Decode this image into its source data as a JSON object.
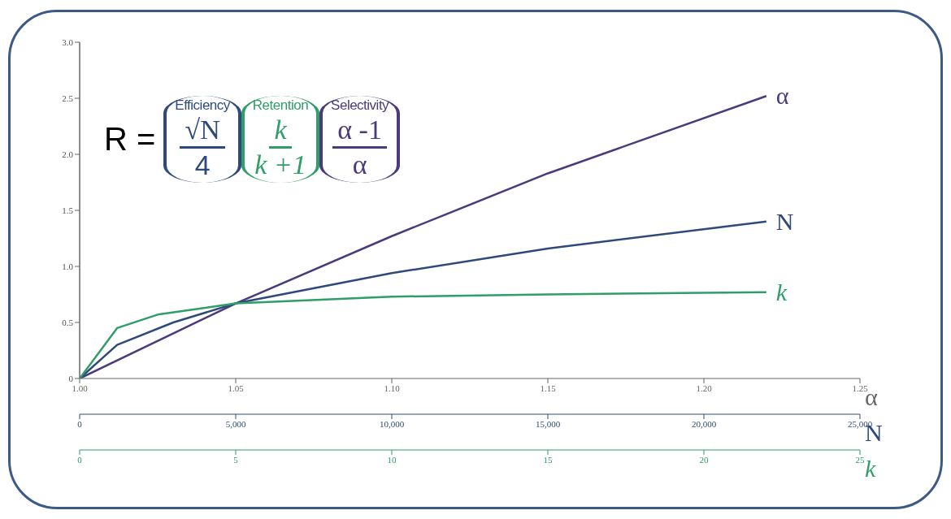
{
  "chart_data": [
    {
      "type": "line",
      "annotations": [
        "R =",
        "Efficiency",
        "√N",
        "4",
        "Retention",
        "k",
        "k +1",
        "Selectivity",
        "α -1",
        "α"
      ],
      "xlabel": "α",
      "x2label": "N",
      "xlim": [
        1.0,
        1.25
      ],
      "xticks": [
        {
          "value": 1.0,
          "label": "1.00"
        },
        1.05,
        {
          "value": 1.1,
          "label": "1.10"
        },
        1.15,
        {
          "value": 1.2,
          "label": "1.20"
        },
        1.25
      ],
      "x2lim": [
        0,
        25000
      ],
      "x2ticks": [
        0,
        {
          "value": 5000,
          "label": "5,000"
        },
        {
          "value": 10000,
          "label": "10,000"
        },
        {
          "value": 15000,
          "label": "15,000"
        },
        {
          "value": 20000,
          "label": "20,000"
        },
        {
          "value": 25000,
          "label": "25,000"
        }
      ],
      "ylim": [
        0,
        3
      ],
      "yticks": [
        0,
        0.5,
        {
          "value": 1,
          "label": "1.0"
        },
        1.5,
        {
          "value": 2,
          "label": "2.0"
        },
        2.5,
        {
          "value": 3,
          "label": "3.0"
        }
      ],
      "marker": "none",
      "line_style": "solid",
      "series": [
        {
          "name": "α",
          "color": "#4b3a7c",
          "x": [
            1.0,
            1.05,
            1.1,
            1.15,
            1.22
          ],
          "values": [
            0,
            0.67,
            1.27,
            1.83,
            2.52
          ]
        },
        {
          "name": "N",
          "color": "#2e4a7d",
          "axis": "x2",
          "x": [
            0,
            1200,
            3000,
            5000,
            10000,
            15000,
            22000
          ],
          "values": [
            0,
            0.3,
            0.5,
            0.67,
            0.94,
            1.16,
            1.4
          ]
        }
      ]
    },
    {
      "type": "line",
      "xlabel": "k",
      "xlim": [
        0,
        25
      ],
      "xticks": [
        0,
        5,
        10,
        15,
        20,
        25
      ],
      "ylim": [
        0,
        3
      ],
      "tick_labels": "x",
      "marker": "none",
      "line_style": "solid",
      "series": [
        {
          "name": "k",
          "color": "#2f9e68",
          "x": [
            0,
            1.2,
            2.5,
            5,
            10,
            15,
            22
          ],
          "values": [
            0,
            0.45,
            0.57,
            0.67,
            0.73,
            0.75,
            0.77
          ]
        }
      ]
    }
  ]
}
